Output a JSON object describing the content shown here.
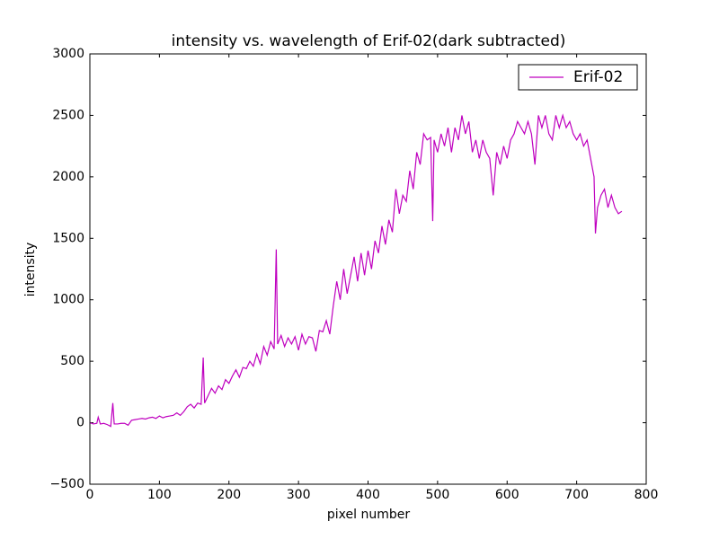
{
  "chart_data": {
    "type": "line",
    "title": "intensity vs. wavelength of Erif-02(dark subtracted)",
    "x_label": "pixel number",
    "y_label": "intensity",
    "xlim": [
      0,
      800
    ],
    "ylim": [
      -500,
      3000
    ],
    "xticks": [
      0,
      100,
      200,
      300,
      400,
      500,
      600,
      700,
      800
    ],
    "yticks": [
      {
        "value": -500,
        "label": "−500"
      },
      0,
      500,
      1000,
      1500,
      2000,
      2500,
      3000
    ],
    "legend": "upper right",
    "x": [
      0,
      5,
      10,
      12,
      15,
      20,
      25,
      30,
      33,
      35,
      40,
      45,
      50,
      55,
      60,
      65,
      70,
      75,
      80,
      85,
      90,
      95,
      100,
      105,
      110,
      115,
      120,
      125,
      130,
      135,
      140,
      145,
      150,
      155,
      160,
      163,
      165,
      170,
      175,
      180,
      185,
      190,
      195,
      200,
      205,
      210,
      215,
      220,
      225,
      230,
      235,
      240,
      245,
      250,
      255,
      260,
      265,
      268,
      270,
      275,
      280,
      285,
      290,
      295,
      300,
      305,
      310,
      315,
      320,
      325,
      330,
      335,
      340,
      345,
      350,
      355,
      360,
      365,
      370,
      375,
      380,
      385,
      390,
      395,
      400,
      405,
      410,
      415,
      420,
      425,
      430,
      435,
      440,
      445,
      450,
      455,
      460,
      465,
      470,
      475,
      480,
      485,
      490,
      493,
      495,
      500,
      505,
      510,
      515,
      520,
      525,
      530,
      535,
      540,
      545,
      550,
      555,
      560,
      565,
      570,
      575,
      580,
      585,
      590,
      595,
      600,
      605,
      610,
      615,
      620,
      625,
      630,
      635,
      640,
      645,
      650,
      655,
      660,
      665,
      670,
      675,
      680,
      685,
      690,
      695,
      700,
      705,
      710,
      715,
      720,
      725,
      727,
      730,
      735,
      740,
      745,
      750,
      755,
      760,
      765
    ],
    "series": [
      {
        "name": "Erif-02",
        "color": "#bf00bf",
        "values": [
          0,
          -10,
          -5,
          45,
          -10,
          -5,
          -15,
          -30,
          160,
          -10,
          -10,
          -5,
          -5,
          -20,
          20,
          25,
          30,
          35,
          30,
          40,
          45,
          35,
          55,
          40,
          50,
          55,
          60,
          80,
          60,
          90,
          130,
          150,
          120,
          160,
          150,
          530,
          160,
          220,
          280,
          240,
          300,
          270,
          350,
          320,
          380,
          430,
          370,
          450,
          440,
          500,
          460,
          560,
          480,
          620,
          550,
          660,
          600,
          1410,
          640,
          710,
          620,
          690,
          640,
          700,
          590,
          720,
          640,
          700,
          690,
          580,
          750,
          740,
          830,
          720,
          950,
          1150,
          1000,
          1250,
          1050,
          1200,
          1350,
          1150,
          1380,
          1200,
          1400,
          1250,
          1480,
          1380,
          1600,
          1450,
          1650,
          1550,
          1900,
          1700,
          1850,
          1800,
          2050,
          1900,
          2200,
          2100,
          2350,
          2300,
          2320,
          1640,
          2300,
          2200,
          2350,
          2250,
          2400,
          2200,
          2400,
          2300,
          2500,
          2350,
          2450,
          2200,
          2300,
          2150,
          2300,
          2200,
          2150,
          1850,
          2200,
          2100,
          2250,
          2150,
          2300,
          2350,
          2450,
          2400,
          2350,
          2450,
          2350,
          2100,
          2500,
          2400,
          2500,
          2350,
          2300,
          2500,
          2400,
          2500,
          2400,
          2450,
          2350,
          2300,
          2350,
          2250,
          2300,
          2150,
          2000,
          1540,
          1750,
          1850,
          1900,
          1750,
          1850,
          1750,
          1700,
          1720
        ]
      }
    ]
  }
}
